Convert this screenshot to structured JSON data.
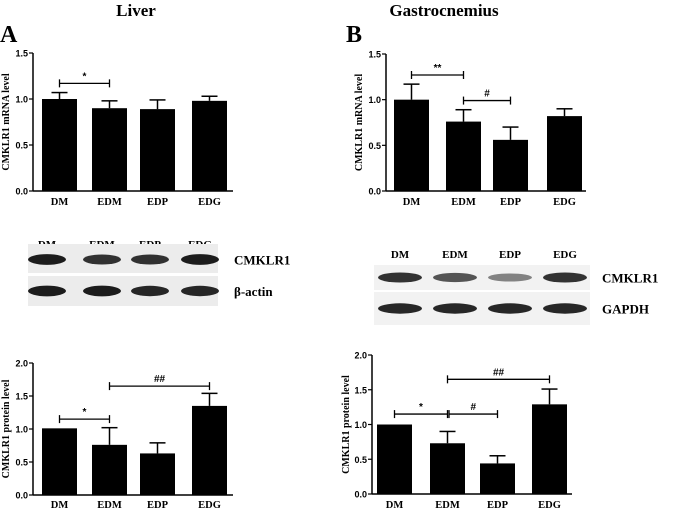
{
  "panels": [
    {
      "letter": "A",
      "title": "Liver",
      "blot": {
        "lanes": [
          "DM",
          "EDM",
          "EDP",
          "EDG"
        ],
        "rows": [
          "CMKLR1",
          "β-actin"
        ],
        "intensity": [
          [
            0.95,
            0.85,
            0.85,
            0.95
          ],
          [
            0.95,
            0.95,
            0.9,
            0.9
          ]
        ]
      }
    },
    {
      "letter": "B",
      "title": "Gastrocnemius",
      "blot": {
        "lanes": [
          "DM",
          "EDM",
          "EDP",
          "EDG"
        ],
        "rows": [
          "CMKLR1",
          "GAPDH"
        ],
        "intensity": [
          [
            0.85,
            0.7,
            0.5,
            0.85
          ],
          [
            0.9,
            0.9,
            0.9,
            0.9
          ]
        ]
      }
    }
  ],
  "chart_data": [
    {
      "type": "bar",
      "panel": "A",
      "ylabel": "CMKLR1 mRNA level",
      "categories": [
        "DM",
        "EDM",
        "EDP",
        "EDG"
      ],
      "values": [
        1.0,
        0.9,
        0.89,
        0.98
      ],
      "errors": [
        0.07,
        0.08,
        0.1,
        0.05
      ],
      "ylim": [
        0,
        1.5
      ],
      "yticks": [
        "0.0",
        "0.5",
        "1.0",
        "1.5"
      ],
      "tickvals": [
        0,
        0.5,
        1.0,
        1.5
      ],
      "annotations": [
        {
          "from": 0,
          "to": 1,
          "y": 1.17,
          "label": "*"
        }
      ]
    },
    {
      "type": "bar",
      "panel": "B",
      "ylabel": "CMKLR1 mRNA level",
      "categories": [
        "DM",
        "EDM",
        "EDP",
        "EDG"
      ],
      "values": [
        1.0,
        0.76,
        0.56,
        0.82
      ],
      "errors": [
        0.17,
        0.13,
        0.14,
        0.08
      ],
      "ylim": [
        0,
        1.5
      ],
      "yticks": [
        "0.0",
        "0.5",
        "1.0",
        "1.5"
      ],
      "tickvals": [
        0,
        0.5,
        1.0,
        1.5
      ],
      "annotations": [
        {
          "from": 0,
          "to": 1,
          "y": 1.27,
          "label": "**"
        },
        {
          "from": 1,
          "to": 2,
          "y": 0.99,
          "label": "#"
        }
      ]
    },
    {
      "type": "bar",
      "panel": "A",
      "ylabel": "CMKLR1 protein level",
      "categories": [
        "DM",
        "EDM",
        "EDP",
        "EDG"
      ],
      "values": [
        1.01,
        0.76,
        0.63,
        1.35
      ],
      "errors": [
        0,
        0.26,
        0.16,
        0.19
      ],
      "ylim": [
        0,
        2.0
      ],
      "yticks": [
        "0.0",
        "0.5",
        "1.0",
        "1.5",
        "2.0"
      ],
      "tickvals": [
        0,
        0.5,
        1.0,
        1.5,
        2.0
      ],
      "annotations": [
        {
          "from": 0,
          "to": 1,
          "y": 1.15,
          "label": "*"
        },
        {
          "from": 1,
          "to": 3,
          "y": 1.65,
          "label": "##"
        }
      ]
    },
    {
      "type": "bar",
      "panel": "B",
      "ylabel": "CMKLR1 protein level",
      "categories": [
        "DM",
        "EDM",
        "EDP",
        "EDG"
      ],
      "values": [
        1.0,
        0.73,
        0.44,
        1.29
      ],
      "errors": [
        0,
        0.17,
        0.11,
        0.22
      ],
      "ylim": [
        0,
        2.0
      ],
      "yticks": [
        "0.0",
        "0.5",
        "1.0",
        "1.5",
        "2.0"
      ],
      "tickvals": [
        0,
        0.5,
        1.0,
        1.5,
        2.0
      ],
      "annotations": [
        {
          "from": 0,
          "to": 1,
          "y": 1.15,
          "label": "*"
        },
        {
          "from": 1,
          "to": 2,
          "y": 1.15,
          "label": "#"
        },
        {
          "from": 1,
          "to": 3,
          "y": 1.65,
          "label": "##"
        }
      ]
    }
  ]
}
